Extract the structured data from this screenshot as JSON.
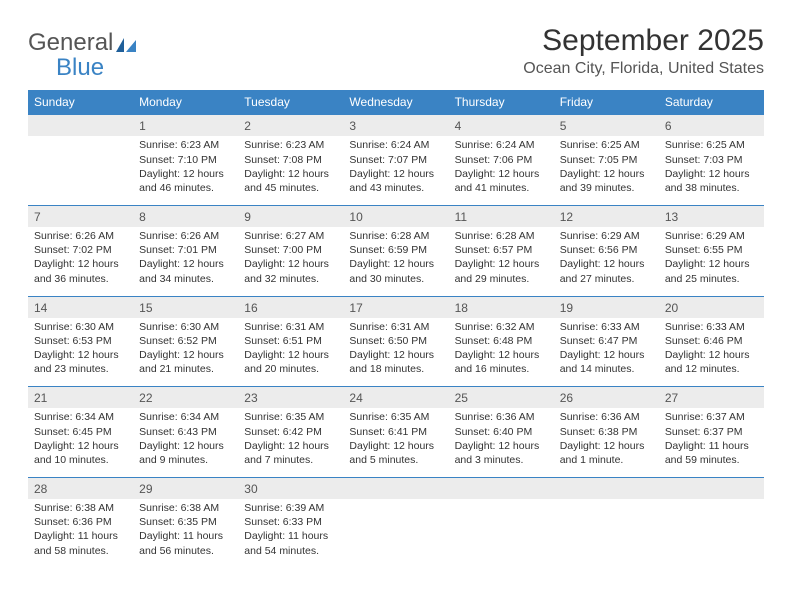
{
  "logo": {
    "general": "General",
    "blue": "Blue"
  },
  "title": "September 2025",
  "location": "Ocean City, Florida, United States",
  "colors": {
    "header_bg": "#3a83c4",
    "header_fg": "#ffffff",
    "daynum_bg": "#ececec",
    "row_border": "#3a83c4",
    "text": "#333333",
    "title_color": "#333333",
    "location_color": "#555555"
  },
  "weekdays": [
    "Sunday",
    "Monday",
    "Tuesday",
    "Wednesday",
    "Thursday",
    "Friday",
    "Saturday"
  ],
  "weeks": [
    {
      "days": [
        null,
        {
          "num": "1",
          "sunrise": "Sunrise: 6:23 AM",
          "sunset": "Sunset: 7:10 PM",
          "daylight": "Daylight: 12 hours and 46 minutes."
        },
        {
          "num": "2",
          "sunrise": "Sunrise: 6:23 AM",
          "sunset": "Sunset: 7:08 PM",
          "daylight": "Daylight: 12 hours and 45 minutes."
        },
        {
          "num": "3",
          "sunrise": "Sunrise: 6:24 AM",
          "sunset": "Sunset: 7:07 PM",
          "daylight": "Daylight: 12 hours and 43 minutes."
        },
        {
          "num": "4",
          "sunrise": "Sunrise: 6:24 AM",
          "sunset": "Sunset: 7:06 PM",
          "daylight": "Daylight: 12 hours and 41 minutes."
        },
        {
          "num": "5",
          "sunrise": "Sunrise: 6:25 AM",
          "sunset": "Sunset: 7:05 PM",
          "daylight": "Daylight: 12 hours and 39 minutes."
        },
        {
          "num": "6",
          "sunrise": "Sunrise: 6:25 AM",
          "sunset": "Sunset: 7:03 PM",
          "daylight": "Daylight: 12 hours and 38 minutes."
        }
      ]
    },
    {
      "days": [
        {
          "num": "7",
          "sunrise": "Sunrise: 6:26 AM",
          "sunset": "Sunset: 7:02 PM",
          "daylight": "Daylight: 12 hours and 36 minutes."
        },
        {
          "num": "8",
          "sunrise": "Sunrise: 6:26 AM",
          "sunset": "Sunset: 7:01 PM",
          "daylight": "Daylight: 12 hours and 34 minutes."
        },
        {
          "num": "9",
          "sunrise": "Sunrise: 6:27 AM",
          "sunset": "Sunset: 7:00 PM",
          "daylight": "Daylight: 12 hours and 32 minutes."
        },
        {
          "num": "10",
          "sunrise": "Sunrise: 6:28 AM",
          "sunset": "Sunset: 6:59 PM",
          "daylight": "Daylight: 12 hours and 30 minutes."
        },
        {
          "num": "11",
          "sunrise": "Sunrise: 6:28 AM",
          "sunset": "Sunset: 6:57 PM",
          "daylight": "Daylight: 12 hours and 29 minutes."
        },
        {
          "num": "12",
          "sunrise": "Sunrise: 6:29 AM",
          "sunset": "Sunset: 6:56 PM",
          "daylight": "Daylight: 12 hours and 27 minutes."
        },
        {
          "num": "13",
          "sunrise": "Sunrise: 6:29 AM",
          "sunset": "Sunset: 6:55 PM",
          "daylight": "Daylight: 12 hours and 25 minutes."
        }
      ]
    },
    {
      "days": [
        {
          "num": "14",
          "sunrise": "Sunrise: 6:30 AM",
          "sunset": "Sunset: 6:53 PM",
          "daylight": "Daylight: 12 hours and 23 minutes."
        },
        {
          "num": "15",
          "sunrise": "Sunrise: 6:30 AM",
          "sunset": "Sunset: 6:52 PM",
          "daylight": "Daylight: 12 hours and 21 minutes."
        },
        {
          "num": "16",
          "sunrise": "Sunrise: 6:31 AM",
          "sunset": "Sunset: 6:51 PM",
          "daylight": "Daylight: 12 hours and 20 minutes."
        },
        {
          "num": "17",
          "sunrise": "Sunrise: 6:31 AM",
          "sunset": "Sunset: 6:50 PM",
          "daylight": "Daylight: 12 hours and 18 minutes."
        },
        {
          "num": "18",
          "sunrise": "Sunrise: 6:32 AM",
          "sunset": "Sunset: 6:48 PM",
          "daylight": "Daylight: 12 hours and 16 minutes."
        },
        {
          "num": "19",
          "sunrise": "Sunrise: 6:33 AM",
          "sunset": "Sunset: 6:47 PM",
          "daylight": "Daylight: 12 hours and 14 minutes."
        },
        {
          "num": "20",
          "sunrise": "Sunrise: 6:33 AM",
          "sunset": "Sunset: 6:46 PM",
          "daylight": "Daylight: 12 hours and 12 minutes."
        }
      ]
    },
    {
      "days": [
        {
          "num": "21",
          "sunrise": "Sunrise: 6:34 AM",
          "sunset": "Sunset: 6:45 PM",
          "daylight": "Daylight: 12 hours and 10 minutes."
        },
        {
          "num": "22",
          "sunrise": "Sunrise: 6:34 AM",
          "sunset": "Sunset: 6:43 PM",
          "daylight": "Daylight: 12 hours and 9 minutes."
        },
        {
          "num": "23",
          "sunrise": "Sunrise: 6:35 AM",
          "sunset": "Sunset: 6:42 PM",
          "daylight": "Daylight: 12 hours and 7 minutes."
        },
        {
          "num": "24",
          "sunrise": "Sunrise: 6:35 AM",
          "sunset": "Sunset: 6:41 PM",
          "daylight": "Daylight: 12 hours and 5 minutes."
        },
        {
          "num": "25",
          "sunrise": "Sunrise: 6:36 AM",
          "sunset": "Sunset: 6:40 PM",
          "daylight": "Daylight: 12 hours and 3 minutes."
        },
        {
          "num": "26",
          "sunrise": "Sunrise: 6:36 AM",
          "sunset": "Sunset: 6:38 PM",
          "daylight": "Daylight: 12 hours and 1 minute."
        },
        {
          "num": "27",
          "sunrise": "Sunrise: 6:37 AM",
          "sunset": "Sunset: 6:37 PM",
          "daylight": "Daylight: 11 hours and 59 minutes."
        }
      ]
    },
    {
      "days": [
        {
          "num": "28",
          "sunrise": "Sunrise: 6:38 AM",
          "sunset": "Sunset: 6:36 PM",
          "daylight": "Daylight: 11 hours and 58 minutes."
        },
        {
          "num": "29",
          "sunrise": "Sunrise: 6:38 AM",
          "sunset": "Sunset: 6:35 PM",
          "daylight": "Daylight: 11 hours and 56 minutes."
        },
        {
          "num": "30",
          "sunrise": "Sunrise: 6:39 AM",
          "sunset": "Sunset: 6:33 PM",
          "daylight": "Daylight: 11 hours and 54 minutes."
        },
        null,
        null,
        null,
        null
      ]
    }
  ]
}
